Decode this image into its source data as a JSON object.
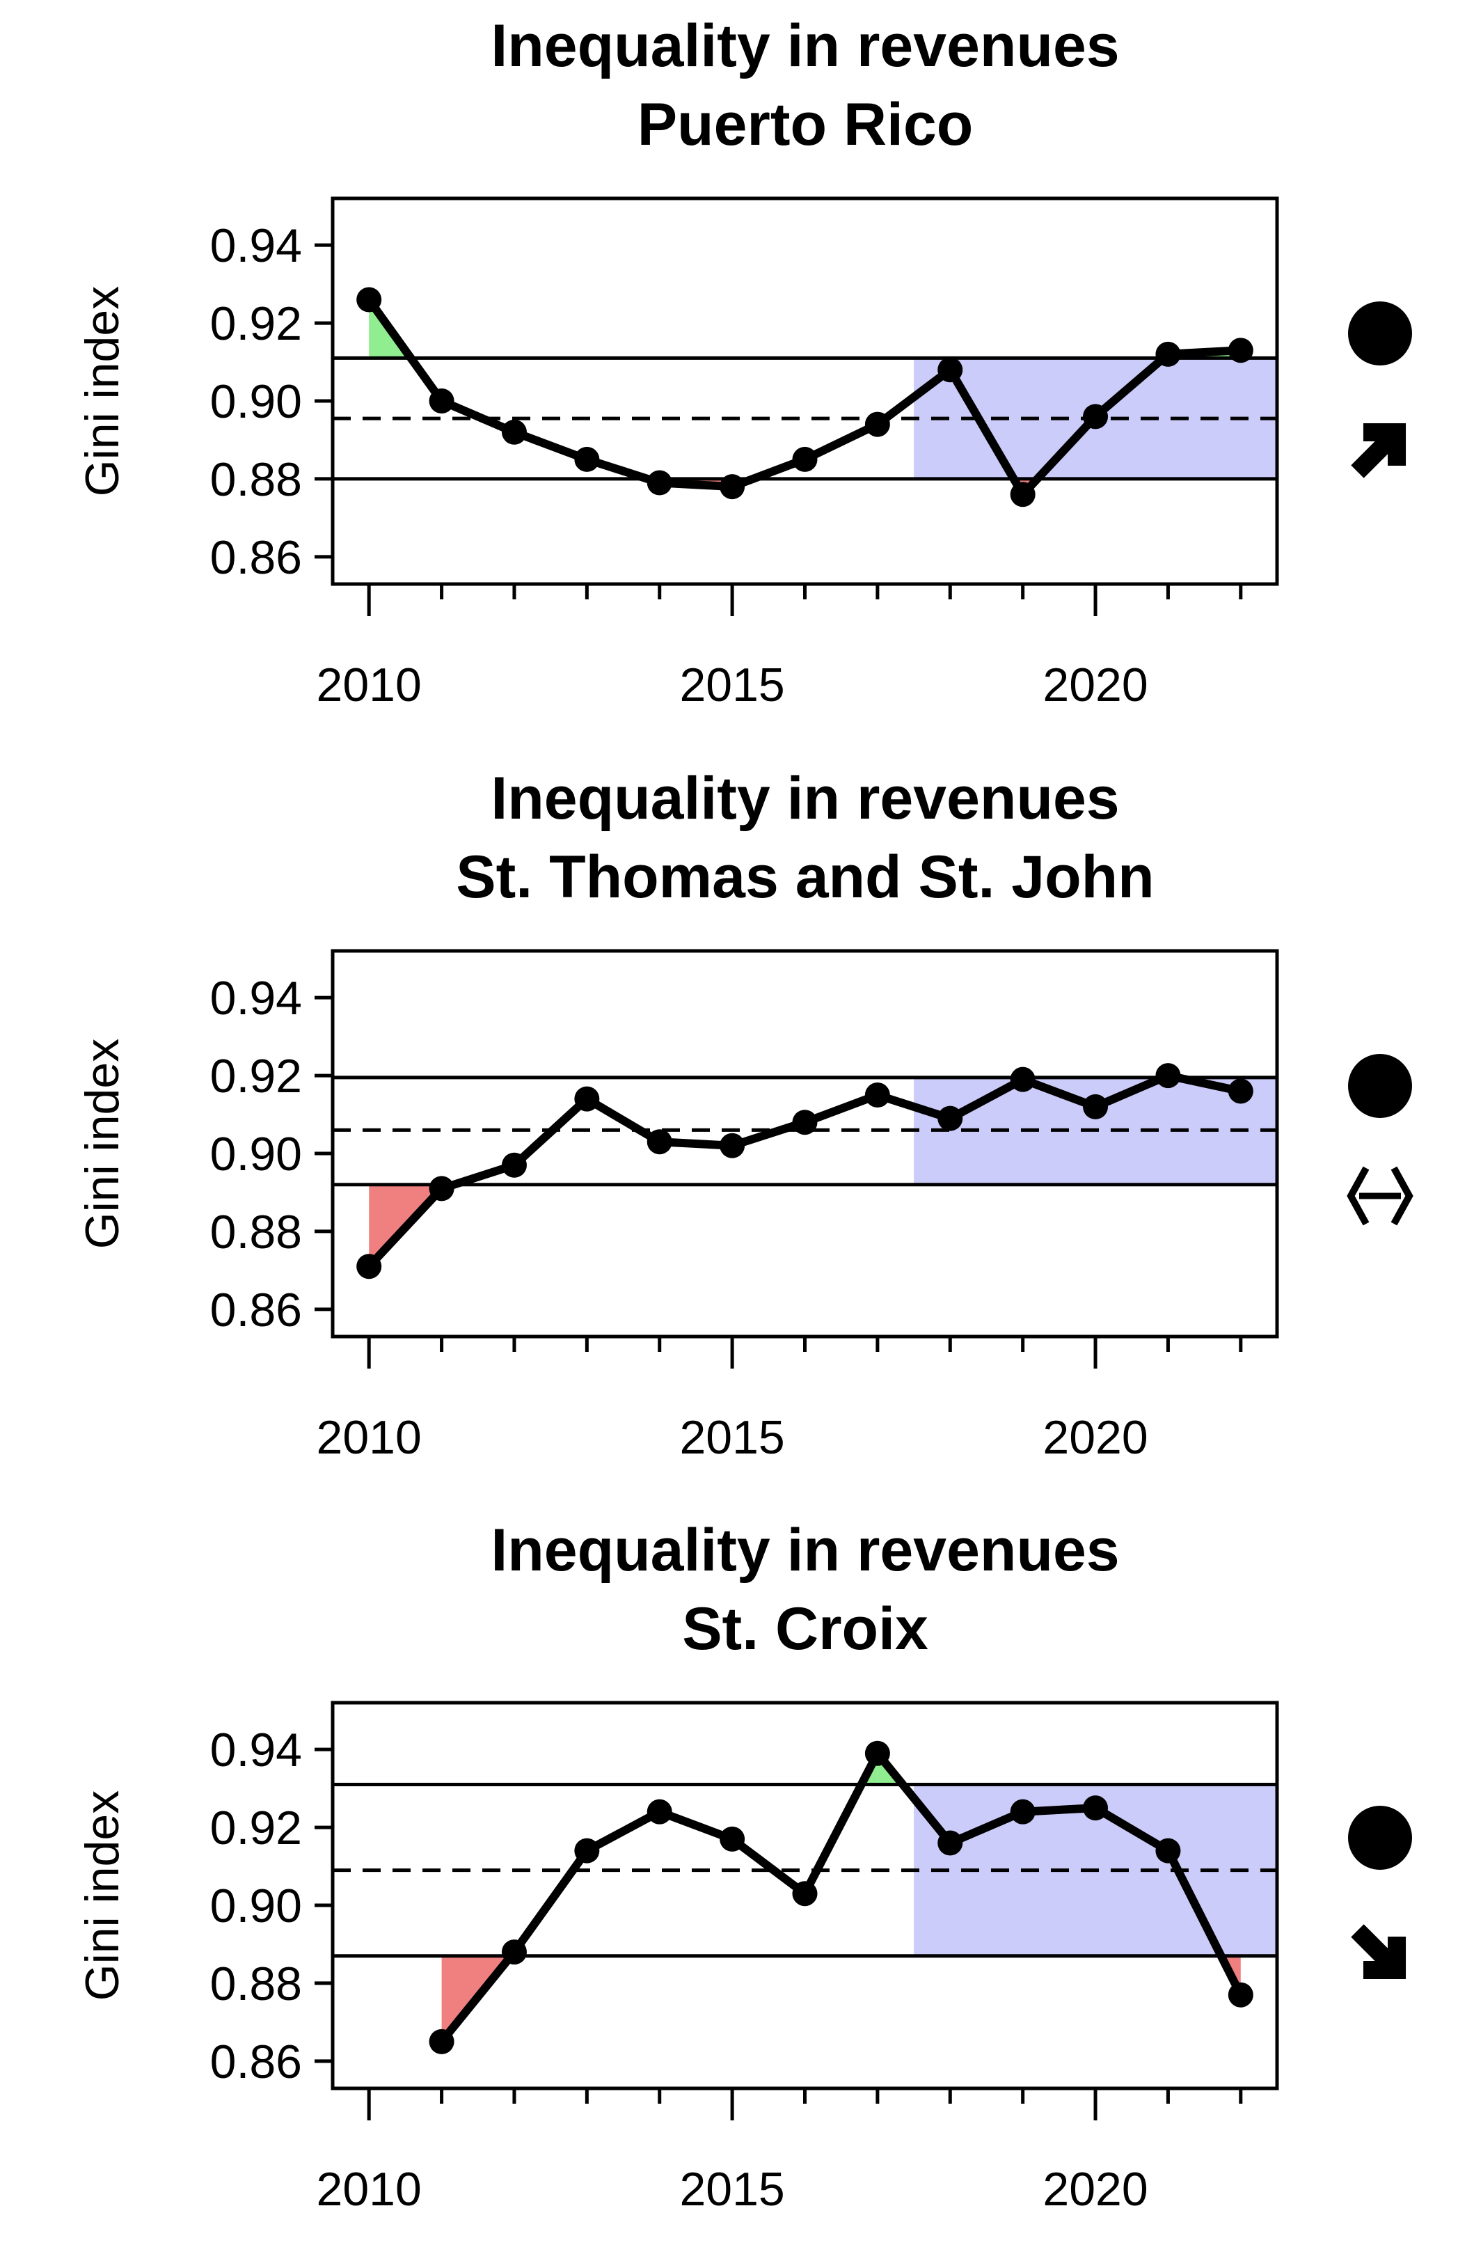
{
  "chart_data": [
    {
      "type": "line",
      "title": "Inequality in revenues",
      "subtitle": "Puerto Rico",
      "ylabel": "Gini index",
      "xlabel": "",
      "xlim": [
        2009.5,
        2022.5
      ],
      "ylim": [
        0.853,
        0.952
      ],
      "xticks": [
        "2010",
        "2015",
        "2020"
      ],
      "xtick_values": [
        2010,
        2015,
        2020
      ],
      "yticks": [
        "0.86",
        "0.88",
        "0.90",
        "0.92",
        "0.94"
      ],
      "ytick_values": [
        0.86,
        0.88,
        0.9,
        0.92,
        0.94
      ],
      "mean": 0.8955,
      "upper_limit": 0.911,
      "lower_limit": 0.88,
      "recent_period_start": 2017.5,
      "x": [
        2010,
        2011,
        2012,
        2013,
        2014,
        2015,
        2016,
        2017,
        2018,
        2019,
        2020,
        2021,
        2022
      ],
      "values": [
        0.926,
        0.9,
        0.892,
        0.885,
        0.879,
        0.878,
        0.885,
        0.894,
        0.908,
        0.876,
        0.896,
        0.912,
        0.913
      ],
      "status_symbol": "filled-circle",
      "trend_symbol": "arrow-up-right",
      "colors": {
        "above": "#90ee90",
        "below": "#f08080",
        "recent": "#ccccfa",
        "line": "#000000"
      }
    },
    {
      "type": "line",
      "title": "Inequality in revenues",
      "subtitle": "St. Thomas and St. John",
      "ylabel": "Gini index",
      "xlabel": "",
      "xlim": [
        2009.5,
        2022.5
      ],
      "ylim": [
        0.853,
        0.952
      ],
      "xticks": [
        "2010",
        "2015",
        "2020"
      ],
      "xtick_values": [
        2010,
        2015,
        2020
      ],
      "yticks": [
        "0.86",
        "0.88",
        "0.90",
        "0.92",
        "0.94"
      ],
      "ytick_values": [
        0.86,
        0.88,
        0.9,
        0.92,
        0.94
      ],
      "mean": 0.906,
      "upper_limit": 0.9195,
      "lower_limit": 0.892,
      "recent_period_start": 2017.5,
      "x": [
        2010,
        2011,
        2012,
        2013,
        2014,
        2015,
        2016,
        2017,
        2018,
        2019,
        2020,
        2021,
        2022
      ],
      "values": [
        0.871,
        0.891,
        0.897,
        0.914,
        0.903,
        0.902,
        0.908,
        0.915,
        0.909,
        0.919,
        0.912,
        0.92,
        0.916
      ],
      "status_symbol": "filled-circle",
      "trend_symbol": "arrow-left-right",
      "colors": {
        "above": "#90ee90",
        "below": "#f08080",
        "recent": "#ccccfa",
        "line": "#000000"
      }
    },
    {
      "type": "line",
      "title": "Inequality in revenues",
      "subtitle": "St. Croix",
      "ylabel": "Gini index",
      "xlabel": "",
      "xlim": [
        2009.5,
        2022.5
      ],
      "ylim": [
        0.853,
        0.952
      ],
      "xticks": [
        "2010",
        "2015",
        "2020"
      ],
      "xtick_values": [
        2010,
        2015,
        2020
      ],
      "yticks": [
        "0.86",
        "0.88",
        "0.90",
        "0.92",
        "0.94"
      ],
      "ytick_values": [
        0.86,
        0.88,
        0.9,
        0.92,
        0.94
      ],
      "mean": 0.909,
      "upper_limit": 0.931,
      "lower_limit": 0.887,
      "recent_period_start": 2017.5,
      "x": [
        2011,
        2012,
        2013,
        2014,
        2015,
        2016,
        2017,
        2018,
        2019,
        2020,
        2021,
        2022
      ],
      "values": [
        0.865,
        0.888,
        0.914,
        0.924,
        0.917,
        0.903,
        0.939,
        0.916,
        0.924,
        0.925,
        0.914,
        0.877
      ],
      "status_symbol": "filled-circle",
      "trend_symbol": "arrow-down-right",
      "colors": {
        "above": "#90ee90",
        "below": "#f08080",
        "recent": "#ccccfa",
        "line": "#000000"
      }
    }
  ]
}
